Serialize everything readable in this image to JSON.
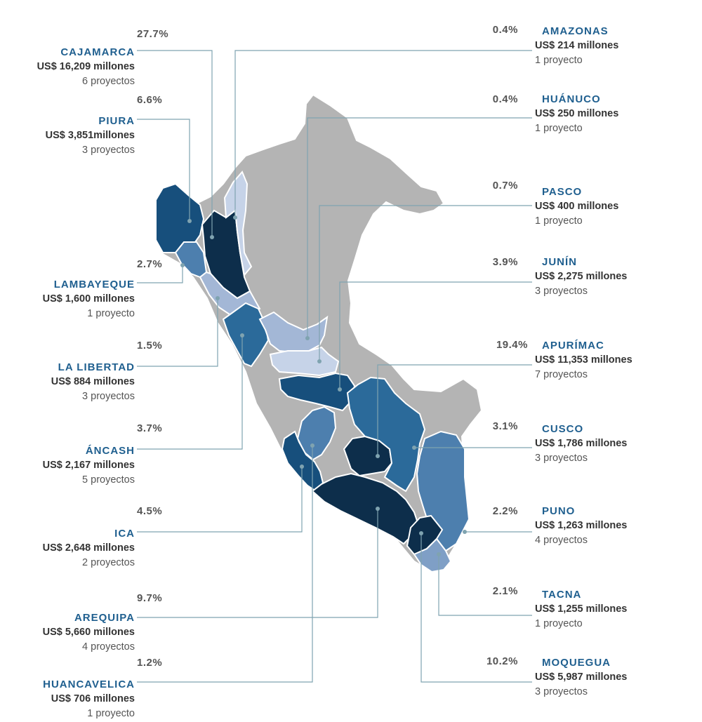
{
  "colors": {
    "darkest": "#0d2e4b",
    "dark": "#174f7c",
    "mid": "#2b6a9a",
    "medium": "#4d7fae",
    "light": "#7f9fc6",
    "lighter": "#a3b7d6",
    "lightest": "#c6d3e8",
    "base": "#b4b4b4",
    "leader": "#7fa3b0",
    "name": "#1f5f8f"
  },
  "regions": {
    "cajamarca": {
      "name": "CAJAMARCA",
      "pct": "27.7%",
      "amount": "US$ 16,209 millones",
      "projects": "6 proyectos"
    },
    "piura": {
      "name": "PIURA",
      "pct": "6.6%",
      "amount": "US$ 3,851millones",
      "projects": "3 proyectos"
    },
    "lambayeque": {
      "name": "LAMBAYEQUE",
      "pct": "2.7%",
      "amount": "US$ 1,600 millones",
      "projects": "1 proyecto"
    },
    "lalibertad": {
      "name": "LA LIBERTAD",
      "pct": "1.5%",
      "amount": "US$ 884 millones",
      "projects": "3 proyectos"
    },
    "ancash": {
      "name": "ÁNCASH",
      "pct": "3.7%",
      "amount": "US$ 2,167 millones",
      "projects": "5 proyectos"
    },
    "ica": {
      "name": "ICA",
      "pct": "4.5%",
      "amount": "US$ 2,648 millones",
      "projects": "2 proyectos"
    },
    "arequipa": {
      "name": "AREQUIPA",
      "pct": "9.7%",
      "amount": "US$ 5,660 millones",
      "projects": "4 proyectos"
    },
    "huancavelica": {
      "name": "HUANCAVELICA",
      "pct": "1.2%",
      "amount": "US$ 706 millones",
      "projects": "1 proyecto"
    },
    "amazonas": {
      "name": "AMAZONAS",
      "pct": "0.4%",
      "amount": "US$ 214 millones",
      "projects": "1 proyecto"
    },
    "huanuco": {
      "name": "HUÁNUCO",
      "pct": "0.4%",
      "amount": "US$ 250 millones",
      "projects": "1 proyecto"
    },
    "pasco": {
      "name": "PASCO",
      "pct": "0.7%",
      "amount": "US$ 400 millones",
      "projects": "1 proyecto"
    },
    "junin": {
      "name": "JUNÍN",
      "pct": "3.9%",
      "amount": "US$ 2,275 millones",
      "projects": "3 proyectos"
    },
    "apurimac": {
      "name": "APURÍMAC",
      "pct": "19.4%",
      "amount": "US$ 11,353 millones",
      "projects": "7 proyectos"
    },
    "cusco": {
      "name": "CUSCO",
      "pct": "3.1%",
      "amount": "US$ 1,786 millones",
      "projects": "3 proyectos"
    },
    "puno": {
      "name": "PUNO",
      "pct": "2.2%",
      "amount": "US$ 1,263 millones",
      "projects": "4 proyectos"
    },
    "tacna": {
      "name": "TACNA",
      "pct": "2.1%",
      "amount": "US$ 1,255 millones",
      "projects": "1 proyecto"
    },
    "moquegua": {
      "name": "MOQUEGUA",
      "pct": "10.2%",
      "amount": "US$ 5,987 millones",
      "projects": "3 proyectos"
    }
  }
}
